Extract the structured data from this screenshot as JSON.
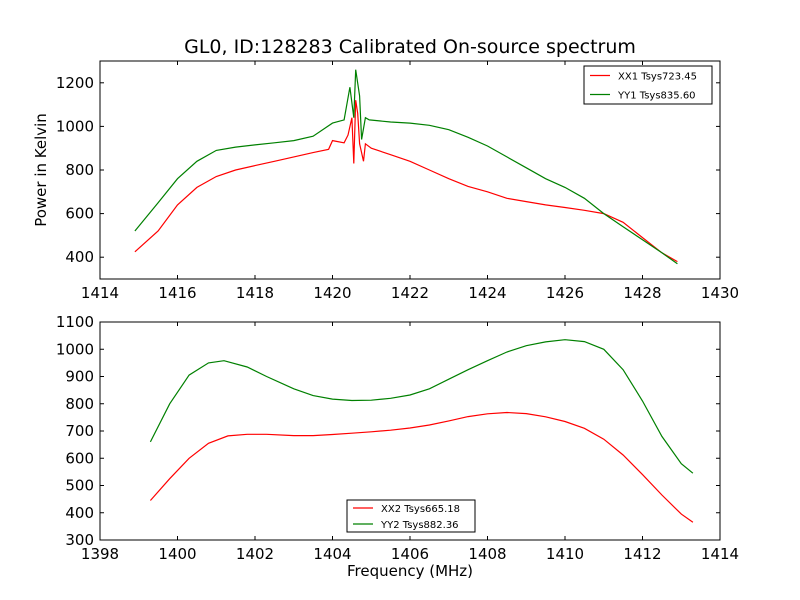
{
  "title": "GL0, ID:128283 Calibrated On-source spectrum",
  "chart_data": [
    {
      "type": "line",
      "ylabel": "Power in Kelvin",
      "xlabel": "",
      "xlim": [
        1414,
        1430
      ],
      "ylim": [
        300,
        1300
      ],
      "xticks": [
        1414,
        1416,
        1418,
        1420,
        1422,
        1424,
        1426,
        1428,
        1430
      ],
      "yticks": [
        400,
        600,
        800,
        1000,
        1200
      ],
      "legend_position": "top-right",
      "series": [
        {
          "name": "XX1 Tsys723.45",
          "color": "#ff0000",
          "x": [
            1414.9,
            1415.5,
            1416.0,
            1416.5,
            1417.0,
            1417.5,
            1418.0,
            1418.5,
            1419.0,
            1419.5,
            1419.9,
            1420.0,
            1420.3,
            1420.4,
            1420.5,
            1420.55,
            1420.6,
            1420.65,
            1420.7,
            1420.8,
            1420.85,
            1421.0,
            1421.5,
            1422.0,
            1422.5,
            1423.0,
            1423.5,
            1424.0,
            1424.5,
            1425.0,
            1425.5,
            1426.0,
            1426.5,
            1427.0,
            1427.5,
            1428.0,
            1428.5,
            1428.9
          ],
          "y": [
            425,
            520,
            640,
            720,
            770,
            800,
            820,
            840,
            860,
            880,
            895,
            935,
            925,
            960,
            1040,
            830,
            1120,
            1060,
            920,
            840,
            920,
            900,
            870,
            840,
            800,
            760,
            725,
            700,
            670,
            655,
            640,
            628,
            615,
            600,
            560,
            490,
            420,
            380
          ]
        },
        {
          "name": "YY1 Tsys835.60",
          "color": "#008000",
          "x": [
            1414.9,
            1415.5,
            1416.0,
            1416.5,
            1417.0,
            1417.5,
            1418.0,
            1418.5,
            1419.0,
            1419.5,
            1420.0,
            1420.3,
            1420.45,
            1420.55,
            1420.6,
            1420.7,
            1420.75,
            1420.85,
            1420.95,
            1421.5,
            1422.0,
            1422.5,
            1423.0,
            1423.5,
            1424.0,
            1424.5,
            1425.0,
            1425.5,
            1426.0,
            1426.5,
            1427.0,
            1427.5,
            1428.0,
            1428.5,
            1428.9
          ],
          "y": [
            520,
            650,
            760,
            840,
            890,
            905,
            915,
            925,
            935,
            955,
            1015,
            1030,
            1180,
            1040,
            1260,
            1140,
            940,
            1040,
            1030,
            1020,
            1015,
            1005,
            985,
            950,
            910,
            860,
            810,
            760,
            720,
            670,
            600,
            540,
            480,
            420,
            370
          ]
        }
      ]
    },
    {
      "type": "line",
      "xlabel": "Frequency (MHz)",
      "ylabel": "",
      "xlim": [
        1398,
        1414
      ],
      "ylim": [
        300,
        1100
      ],
      "xticks": [
        1398,
        1400,
        1402,
        1404,
        1406,
        1408,
        1410,
        1412,
        1414
      ],
      "yticks": [
        300,
        400,
        500,
        600,
        700,
        800,
        900,
        1000,
        1100
      ],
      "legend_position": "bottom-center",
      "series": [
        {
          "name": "XX2 Tsys665.18",
          "color": "#ff0000",
          "x": [
            1399.3,
            1399.8,
            1400.3,
            1400.8,
            1401.3,
            1401.8,
            1402.3,
            1403.0,
            1403.5,
            1404.0,
            1404.5,
            1405.0,
            1405.5,
            1406.0,
            1406.5,
            1407.0,
            1407.5,
            1408.0,
            1408.5,
            1409.0,
            1409.5,
            1410.0,
            1410.5,
            1411.0,
            1411.5,
            1412.0,
            1412.5,
            1413.0,
            1413.3
          ],
          "y": [
            445,
            525,
            600,
            655,
            682,
            688,
            688,
            683,
            683,
            687,
            692,
            697,
            703,
            711,
            722,
            737,
            753,
            763,
            768,
            764,
            752,
            735,
            710,
            670,
            612,
            540,
            465,
            395,
            365
          ]
        },
        {
          "name": "YY2 Tsys882.36",
          "color": "#008000",
          "x": [
            1399.3,
            1399.8,
            1400.3,
            1400.8,
            1401.2,
            1401.8,
            1402.3,
            1403.0,
            1403.5,
            1404.0,
            1404.5,
            1405.0,
            1405.5,
            1406.0,
            1406.5,
            1407.0,
            1407.5,
            1408.0,
            1408.5,
            1409.0,
            1409.5,
            1410.0,
            1410.5,
            1411.0,
            1411.5,
            1412.0,
            1412.5,
            1413.0,
            1413.3
          ],
          "y": [
            660,
            800,
            905,
            950,
            958,
            935,
            900,
            855,
            830,
            817,
            812,
            813,
            820,
            832,
            855,
            890,
            925,
            958,
            990,
            1013,
            1027,
            1035,
            1028,
            1000,
            925,
            810,
            680,
            580,
            545
          ]
        }
      ]
    }
  ]
}
